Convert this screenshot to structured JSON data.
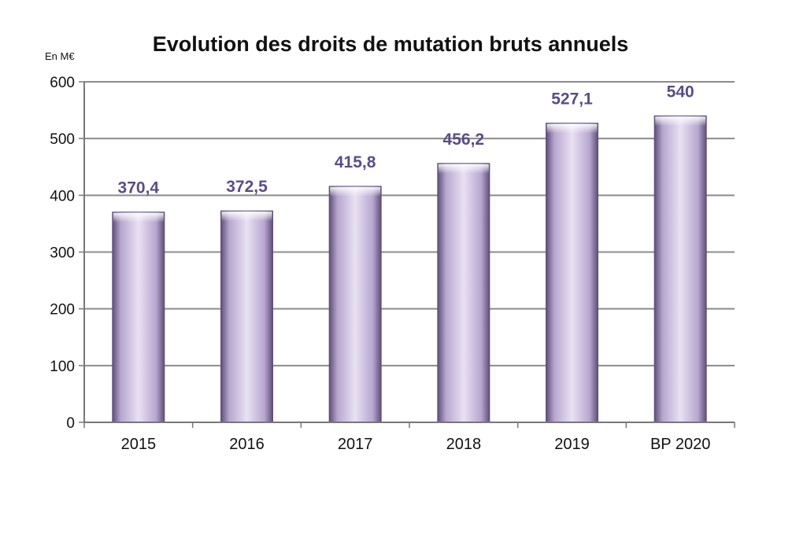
{
  "chart_data": {
    "type": "bar",
    "title": "Evolution des droits de mutation bruts annuels",
    "unit_label": "En M€",
    "categories": [
      "2015",
      "2016",
      "2017",
      "2018",
      "2019",
      "BP 2020"
    ],
    "values": [
      370.4,
      372.5,
      415.8,
      456.2,
      527.1,
      540
    ],
    "data_labels": [
      "370,4",
      "372,5",
      "415,8",
      "456,2",
      "527,1",
      "540"
    ],
    "ylim": [
      0,
      600
    ],
    "yticks": [
      0,
      100,
      200,
      300,
      400,
      500,
      600
    ],
    "grid": true,
    "legend": "none"
  },
  "colors": {
    "bar_light": "#e9e1f3",
    "bar_mid": "#b7a6cf",
    "bar_dark": "#5e4e78",
    "label": "#5b4c86",
    "grid": "#8c8c8c",
    "axis": "#777777"
  }
}
